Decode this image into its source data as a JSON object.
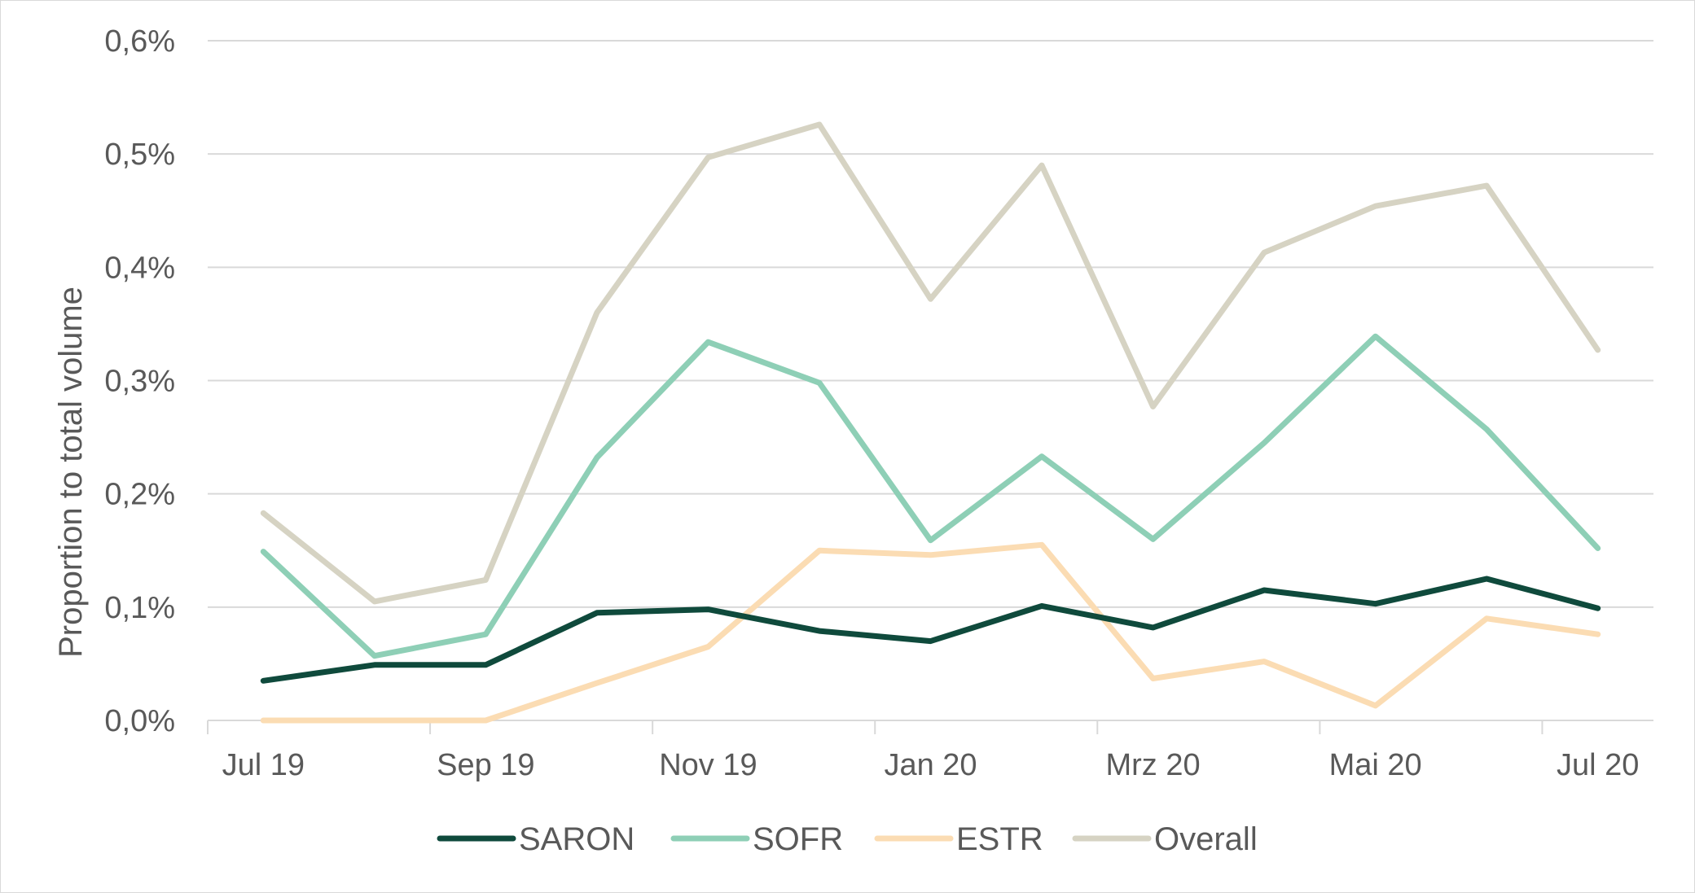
{
  "chart_data": {
    "type": "line",
    "title": "",
    "xlabel": "",
    "ylabel": "Proportion to total volume",
    "ylim": [
      0,
      0.6
    ],
    "yticks": [
      0,
      0.1,
      0.2,
      0.3,
      0.4,
      0.5,
      0.6
    ],
    "ytick_labels": [
      "0,0%",
      "0,1%",
      "0,2%",
      "0,3%",
      "0,4%",
      "0,5%",
      "0,6%"
    ],
    "categories": [
      "Jul 19",
      "Aug 19",
      "Sep 19",
      "Okt 19",
      "Nov 19",
      "Dez 19",
      "Jan 20",
      "Feb 20",
      "Mrz 20",
      "Apr 20",
      "Mai 20",
      "Jun 20",
      "Jul 20"
    ],
    "xtick_labels": [
      {
        "index": 0,
        "label": "Jul 19"
      },
      {
        "index": 2,
        "label": "Sep 19"
      },
      {
        "index": 4,
        "label": "Nov 19"
      },
      {
        "index": 6,
        "label": "Jan 20"
      },
      {
        "index": 8,
        "label": "Mrz 20"
      },
      {
        "index": 10,
        "label": "Mai 20"
      },
      {
        "index": 12,
        "label": "Jul 20"
      }
    ],
    "grid": true,
    "legend_position": "bottom",
    "series": [
      {
        "name": "SARON",
        "color": "#0f4a3c",
        "values": [
          0.035,
          0.049,
          0.049,
          0.095,
          0.098,
          0.079,
          0.07,
          0.101,
          0.082,
          0.115,
          0.103,
          0.125,
          0.099
        ]
      },
      {
        "name": "SOFR",
        "color": "#8ecfb6",
        "values": [
          0.149,
          0.057,
          0.076,
          0.232,
          0.334,
          0.298,
          0.159,
          0.233,
          0.16,
          0.245,
          0.339,
          0.257,
          0.152
        ]
      },
      {
        "name": "ESTR",
        "color": "#fbdcb3",
        "values": [
          0.0,
          0.0,
          0.0,
          0.033,
          0.065,
          0.15,
          0.146,
          0.155,
          0.037,
          0.052,
          0.013,
          0.09,
          0.076
        ]
      },
      {
        "name": "Overall",
        "color": "#d6d3c3",
        "values": [
          0.183,
          0.105,
          0.124,
          0.36,
          0.497,
          0.526,
          0.372,
          0.49,
          0.277,
          0.413,
          0.454,
          0.472,
          0.327
        ]
      }
    ]
  }
}
